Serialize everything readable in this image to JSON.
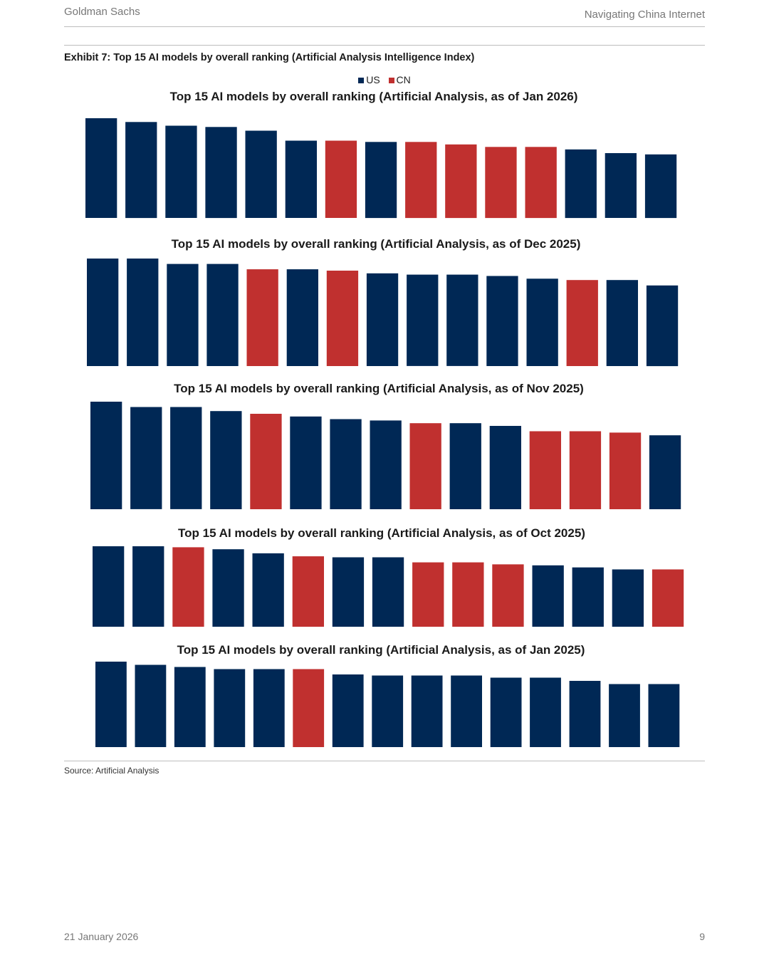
{
  "header": {
    "left": "Goldman Sachs",
    "right": "Navigating China Internet"
  },
  "exhibit": {
    "title": "Exhibit 7: Top 15 AI models by overall ranking (Artificial Analysis Intelligence Index)"
  },
  "legend": {
    "us": "US",
    "cn": "CN"
  },
  "colors": {
    "us": "#002855",
    "cn": "#c0302f",
    "rule": "#bdbdbd"
  },
  "chart_data": [
    {
      "type": "bar",
      "title": "Top 15 AI models by overall ranking (Artificial Analysis, as of Jan 2026)",
      "origin": [
        "US",
        "US",
        "US",
        "US",
        "US",
        "US",
        "CN",
        "US",
        "CN",
        "CN",
        "CN",
        "CN",
        "US",
        "US",
        "US"
      ],
      "values": [
        100,
        97,
        94,
        93,
        90,
        82,
        82,
        81,
        81,
        79,
        77,
        77,
        75,
        72,
        71
      ]
    },
    {
      "type": "bar",
      "title": "Top 15 AI models by overall ranking (Artificial Analysis, as of Dec 2025)",
      "origin": [
        "US",
        "US",
        "US",
        "US",
        "CN",
        "US",
        "CN",
        "US",
        "US",
        "US",
        "US",
        "US",
        "CN",
        "US",
        "US"
      ],
      "values": [
        100,
        100,
        96,
        96,
        92,
        92,
        91,
        89,
        88,
        88,
        87,
        85,
        84,
        84,
        80
      ]
    },
    {
      "type": "bar",
      "title": "Top 15 AI models by overall ranking (Artificial Analysis, as of Nov 2025)",
      "origin": [
        "US",
        "US",
        "US",
        "US",
        "CN",
        "US",
        "US",
        "US",
        "CN",
        "US",
        "US",
        "CN",
        "CN",
        "CN",
        "US"
      ],
      "values": [
        100,
        96,
        96,
        93,
        91,
        89,
        87,
        86,
        84,
        84,
        82,
        78,
        78,
        77,
        75
      ]
    },
    {
      "type": "bar",
      "title": "Top 15 AI models by overall ranking (Artificial Analysis, as of Oct 2025)",
      "origin": [
        "US",
        "US",
        "CN",
        "US",
        "US",
        "CN",
        "US",
        "US",
        "CN",
        "CN",
        "CN",
        "US",
        "US",
        "US",
        "CN"
      ],
      "values": [
        100,
        100,
        99,
        97,
        93,
        90,
        89,
        89,
        84,
        84,
        82,
        81,
        79,
        77,
        77
      ]
    },
    {
      "type": "bar",
      "title": "Top 15 AI models by overall ranking (Artificial Analysis, as of Jan 2025)",
      "origin": [
        "US",
        "US",
        "US",
        "US",
        "US",
        "CN",
        "US",
        "US",
        "US",
        "US",
        "US",
        "US",
        "US",
        "US",
        "US"
      ],
      "values": [
        100,
        97,
        95,
        93,
        93,
        93,
        88,
        87,
        87,
        87,
        85,
        85,
        82,
        79,
        79
      ]
    }
  ],
  "source": "Source: Artificial Analysis",
  "footer": {
    "date": "21 January 2026",
    "page": "9"
  }
}
